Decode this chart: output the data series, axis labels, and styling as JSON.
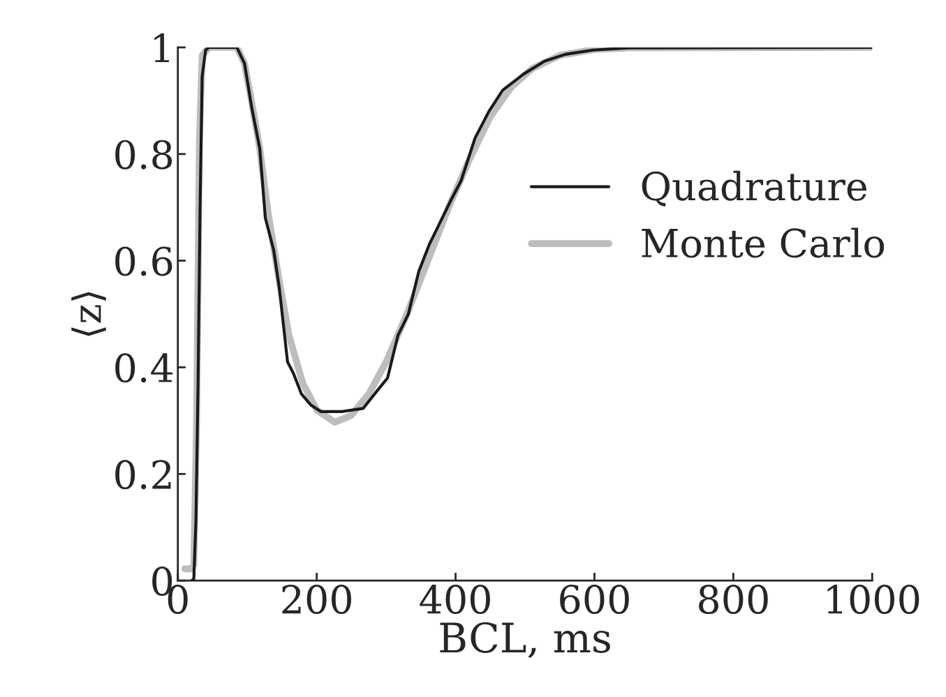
{
  "chart_data": {
    "type": "line",
    "xlabel": "BCL, ms",
    "ylabel": "⟨z⟩",
    "xlim": [
      0,
      1000
    ],
    "ylim": [
      0,
      1
    ],
    "xticks": [
      0,
      200,
      400,
      600,
      800,
      1000
    ],
    "yticks": [
      0,
      0.2,
      0.4,
      0.6,
      0.8,
      1
    ],
    "grid": false,
    "legend": "right",
    "series": [
      {
        "name": "Quadrature",
        "color": "#1a1a1a",
        "x": [
          20,
          23,
          26,
          29,
          32,
          35,
          40,
          45,
          85,
          96,
          106,
          118,
          126,
          138,
          146,
          158,
          166,
          178,
          191,
          206,
          236,
          267,
          287,
          302,
          317,
          332,
          347,
          362,
          377,
          392,
          408,
          428,
          448,
          468,
          498,
          528,
          558,
          598,
          649,
          1000
        ],
        "values": [
          0,
          0.003,
          0.11,
          0.36,
          0.7,
          0.945,
          0.995,
          1,
          1,
          0.97,
          0.89,
          0.81,
          0.68,
          0.62,
          0.55,
          0.41,
          0.39,
          0.35,
          0.33,
          0.317,
          0.317,
          0.323,
          0.356,
          0.38,
          0.46,
          0.5,
          0.58,
          0.63,
          0.67,
          0.71,
          0.75,
          0.83,
          0.88,
          0.92,
          0.95,
          0.974,
          0.987,
          0.995,
          0.999,
          1
        ]
      },
      {
        "name": "Monte Carlo",
        "color": "#bdbdbd",
        "x": [
          10,
          20,
          23,
          27,
          31,
          35,
          45,
          85,
          96,
          106,
          118,
          130,
          145,
          160,
          180,
          200,
          226,
          250,
          275,
          300,
          330,
          360,
          390,
          420,
          450,
          480,
          510,
          550,
          600,
          650,
          1000
        ],
        "values": [
          0.022,
          0.022,
          0.03,
          0.3,
          0.82,
          0.985,
          1,
          1,
          0.97,
          0.9,
          0.81,
          0.69,
          0.57,
          0.46,
          0.37,
          0.32,
          0.297,
          0.31,
          0.35,
          0.41,
          0.5,
          0.6,
          0.7,
          0.79,
          0.87,
          0.925,
          0.96,
          0.985,
          0.996,
          0.999,
          1
        ]
      }
    ]
  }
}
